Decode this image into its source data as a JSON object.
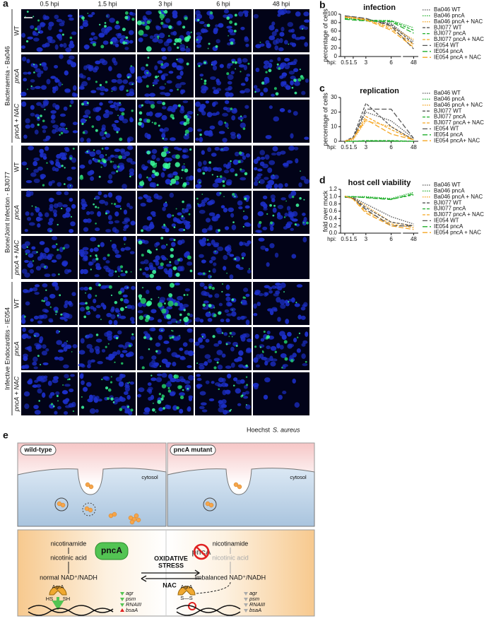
{
  "figure": {
    "panel_a": {
      "label": "a",
      "columns": [
        "0.5 hpi",
        "1.5 hpi",
        "3 hpi",
        "6 hpi",
        "48 hpi"
      ],
      "groups": [
        {
          "name": "Bacteraemia - Ba046",
          "rows": [
            "WT",
            "pncA",
            "pncA + NAC"
          ]
        },
        {
          "name": "Bone/Joint Infection - BJI077",
          "rows": [
            "WT",
            "pncA",
            "pncA + NAC"
          ]
        },
        {
          "name": "Infective Endocarditis - IE054",
          "rows": [
            "WT",
            "pncA",
            "pncA + NAC"
          ]
        }
      ],
      "legend": [
        "Hoechst",
        "S. aureus"
      ]
    },
    "panel_e": {
      "label": "e",
      "wild_type": {
        "title": "wild-type",
        "cytosol": "cytosol",
        "nicotinamide": "nicotinamide",
        "nicotinic_acid": "nicotinic acid",
        "enzyme": "pncA",
        "nad": "normal NAD⁺/NADH",
        "agra": "AgrA",
        "hs": "HS",
        "sh": "SH",
        "genes": [
          "agr",
          "psm",
          "RNAIII",
          "bsaA"
        ]
      },
      "mutant": {
        "title": "pncA mutant",
        "cytosol": "cytosol",
        "nicotinamide": "nicotinamide",
        "nicotinic_acid": "nicotinic acid",
        "enzyme": "pncA",
        "nad": "imbalanced NAD⁺/NADH",
        "agra": "AgrA",
        "ss": "S—S",
        "genes": [
          "agr",
          "psm",
          "RNAIII",
          "bsaA"
        ]
      },
      "stress": [
        "OXIDATIVE",
        "STRESS"
      ],
      "nac": "NAC"
    }
  },
  "chart_data": [
    {
      "type": "line",
      "label": "b",
      "title": "infection",
      "ylabel": "percentage of cells",
      "xlabel": "hpi:",
      "x": [
        0.5,
        1.5,
        3,
        6,
        48
      ],
      "xlim": [
        0,
        49
      ],
      "xbreak": [
        7,
        46
      ],
      "xticks": [
        0.5,
        1.5,
        3,
        6,
        48
      ],
      "ylim": [
        0,
        100
      ],
      "yticks": [
        0,
        20,
        40,
        60,
        80,
        100
      ],
      "legend": "right",
      "series": [
        {
          "name": "Ba046 WT",
          "color": "#555555",
          "dash": "dotted",
          "values": [
            93,
            91,
            87,
            78,
            35
          ]
        },
        {
          "name": "Ba046 pncA",
          "color": "#1fae2a",
          "dash": "dotted",
          "values": [
            90,
            88,
            85,
            85,
            68
          ]
        },
        {
          "name": "Ba046 pncA + NAC",
          "color": "#f5a623",
          "dash": "dotted",
          "values": [
            92,
            90,
            86,
            70,
            40
          ]
        },
        {
          "name": "BJI077 WT",
          "color": "#555555",
          "dash": "dashed",
          "values": [
            95,
            93,
            89,
            75,
            30
          ]
        },
        {
          "name": "BJI077 pncA",
          "color": "#1fae2a",
          "dash": "dashed",
          "values": [
            90,
            88,
            86,
            84,
            62
          ]
        },
        {
          "name": "BJI077 pncA + NAC",
          "color": "#f5a623",
          "dash": "dashed",
          "values": [
            94,
            92,
            88,
            66,
            28
          ]
        },
        {
          "name": "IE054 WT",
          "color": "#555555",
          "dash": "longdash",
          "values": [
            96,
            94,
            90,
            72,
            18
          ]
        },
        {
          "name": "IE054 pncA",
          "color": "#1fae2a",
          "dash": "longdash",
          "values": [
            88,
            86,
            84,
            82,
            55
          ]
        },
        {
          "name": "IE054 pncA + NAC",
          "color": "#f5a623",
          "dash": "longdash",
          "values": [
            93,
            91,
            86,
            62,
            22
          ]
        }
      ]
    },
    {
      "type": "line",
      "label": "c",
      "title": "replication",
      "ylabel": "percentage of cells",
      "xlabel": "hpi:",
      "x": [
        0.5,
        1.5,
        3,
        6,
        48
      ],
      "xlim": [
        0,
        49
      ],
      "xbreak": [
        7,
        46
      ],
      "xticks": [
        0.5,
        1.5,
        3,
        6,
        48
      ],
      "ylim": [
        0,
        30
      ],
      "yticks": [
        0,
        10,
        20,
        30
      ],
      "legend": "right",
      "series": [
        {
          "name": "Ba046 WT",
          "color": "#555555",
          "dash": "dotted",
          "values": [
            0,
            2,
            20,
            14,
            2
          ]
        },
        {
          "name": "Ba046 pncA",
          "color": "#1fae2a",
          "dash": "dotted",
          "values": [
            0,
            0,
            0,
            0,
            0
          ]
        },
        {
          "name": "Ba046 pncA + NAC",
          "color": "#f5a623",
          "dash": "dotted",
          "values": [
            0,
            1,
            14,
            10,
            1
          ]
        },
        {
          "name": "BJI077 WT",
          "color": "#555555",
          "dash": "dashed",
          "values": [
            0,
            3,
            26,
            10,
            1
          ]
        },
        {
          "name": "BJI077 pncA",
          "color": "#1fae2a",
          "dash": "dashed",
          "values": [
            0,
            0,
            0.5,
            0.5,
            0
          ]
        },
        {
          "name": "BJI077 pncA + NAC",
          "color": "#f5a623",
          "dash": "dashed",
          "values": [
            0,
            2,
            17,
            8,
            1
          ]
        },
        {
          "name": "IE054 WT",
          "color": "#555555",
          "dash": "longdash",
          "values": [
            0,
            2,
            22,
            22,
            2
          ]
        },
        {
          "name": "IE054 pncA",
          "color": "#1fae2a",
          "dash": "longdash",
          "values": [
            0,
            0,
            0.3,
            0.3,
            0
          ]
        },
        {
          "name": "IE054 pncA+ NAC",
          "color": "#f5a623",
          "dash": "longdash",
          "values": [
            0,
            2,
            15,
            5,
            1
          ]
        }
      ]
    },
    {
      "type": "line",
      "label": "d",
      "title": "host cell viability",
      "ylabel": "fold over mock",
      "xlabel": "hpi:",
      "x": [
        0.5,
        1.5,
        3,
        6,
        48
      ],
      "xlim": [
        0,
        49
      ],
      "xbreak": [
        7,
        46
      ],
      "xticks": [
        0.5,
        1.5,
        3,
        6,
        48
      ],
      "ylim": [
        0,
        1.2
      ],
      "yticks": [
        {
          "value": 0,
          "label": "0.0"
        },
        0.2,
        0.4,
        0.6,
        0.8,
        {
          "value": 1,
          "label": "1.0"
        },
        1.2
      ],
      "legend": "right",
      "series": [
        {
          "name": "Ba046 WT",
          "color": "#555555",
          "dash": "dotted",
          "values": [
            1,
            0.98,
            0.8,
            0.45,
            0.25
          ]
        },
        {
          "name": "Ba046 pncA",
          "color": "#1fae2a",
          "dash": "dotted",
          "values": [
            1,
            1,
            1,
            0.95,
            1.12
          ]
        },
        {
          "name": "Ba046 pncA + NAC",
          "color": "#f5a623",
          "dash": "dotted",
          "values": [
            1,
            0.97,
            0.75,
            0.3,
            0.2
          ]
        },
        {
          "name": "BJI077 WT",
          "color": "#555555",
          "dash": "dashed",
          "values": [
            1,
            0.97,
            0.7,
            0.3,
            0.2
          ]
        },
        {
          "name": "BJI077 pncA",
          "color": "#1fae2a",
          "dash": "dashed",
          "values": [
            0.98,
            0.99,
            0.98,
            0.93,
            1.05
          ]
        },
        {
          "name": "BJI077 pncA + NAC",
          "color": "#f5a623",
          "dash": "dashed",
          "values": [
            1,
            0.95,
            0.6,
            0.25,
            0.15
          ]
        },
        {
          "name": "IE054 WT",
          "color": "#555555",
          "dash": "longdash",
          "values": [
            1,
            0.95,
            0.65,
            0.2,
            0.2
          ]
        },
        {
          "name": "IE054 pncA",
          "color": "#1fae2a",
          "dash": "longdash",
          "values": [
            1,
            1,
            0.97,
            0.92,
            1.08
          ]
        },
        {
          "name": "IE054 pncA + NAC",
          "color": "#f5a623",
          "dash": "longdash",
          "values": [
            1.02,
            0.93,
            0.55,
            0.2,
            0.1
          ]
        }
      ]
    }
  ]
}
